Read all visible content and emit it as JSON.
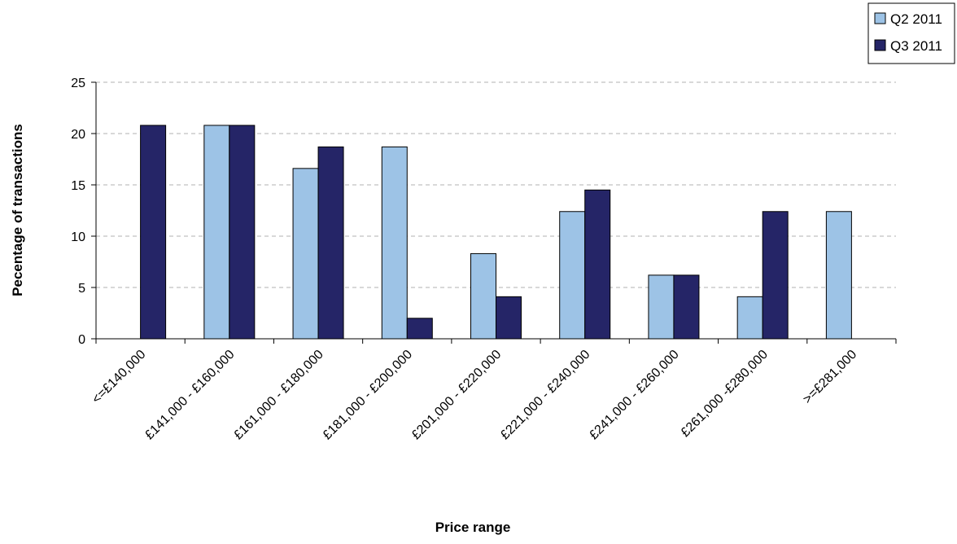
{
  "chart_data": {
    "type": "bar",
    "title": "",
    "xlabel": "Price range",
    "ylabel": "Pecentage of transactions",
    "ylim": [
      0,
      25
    ],
    "yticks": [
      "0",
      "5",
      "10",
      "15",
      "20",
      "25"
    ],
    "grid": "horizontal dashed",
    "legend_position": "top-right",
    "categories": [
      "<=£140,000",
      "£141,000 - £160,000",
      "£161,000 - £180,000",
      "£181,000 - £200,000",
      "£201,000 - £220,000",
      "£221,000 - £240,000",
      "£241,000 - £260,000",
      "£261,000 -£280,000",
      ">=£281,000"
    ],
    "series": [
      {
        "name": "Q2 2011",
        "color": "#9DC3E6",
        "values": [
          0,
          20.8,
          16.6,
          18.7,
          8.3,
          12.4,
          6.2,
          4.1,
          12.4
        ]
      },
      {
        "name": "Q3 2011",
        "color": "#252567",
        "values": [
          20.8,
          20.8,
          18.7,
          2.0,
          4.1,
          14.5,
          6.2,
          12.4,
          0
        ]
      }
    ]
  }
}
